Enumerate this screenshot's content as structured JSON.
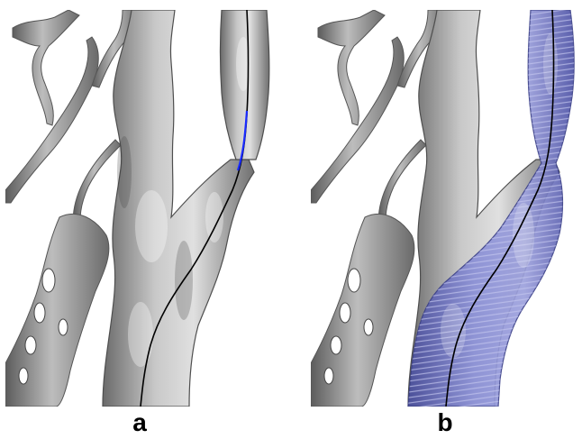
{
  "figure": {
    "panels": [
      {
        "id": "a",
        "label": "a",
        "overlay": false
      },
      {
        "id": "b",
        "label": "b",
        "overlay": true
      }
    ]
  },
  "colors": {
    "background": "#ffffff",
    "vessel_surface": "#a9a9a9",
    "vessel_highlight": "#d6d6d6",
    "vessel_shadow": "#5e5e5e",
    "centerline": "#000000",
    "centerline_highlight": "#1a2bff",
    "segmented_overlay": "#6a6fbf",
    "overlay_hatching": "#8e92d4"
  },
  "icons": [
    "vessel-surface-render",
    "centerline-curve",
    "segmentation-overlay"
  ]
}
